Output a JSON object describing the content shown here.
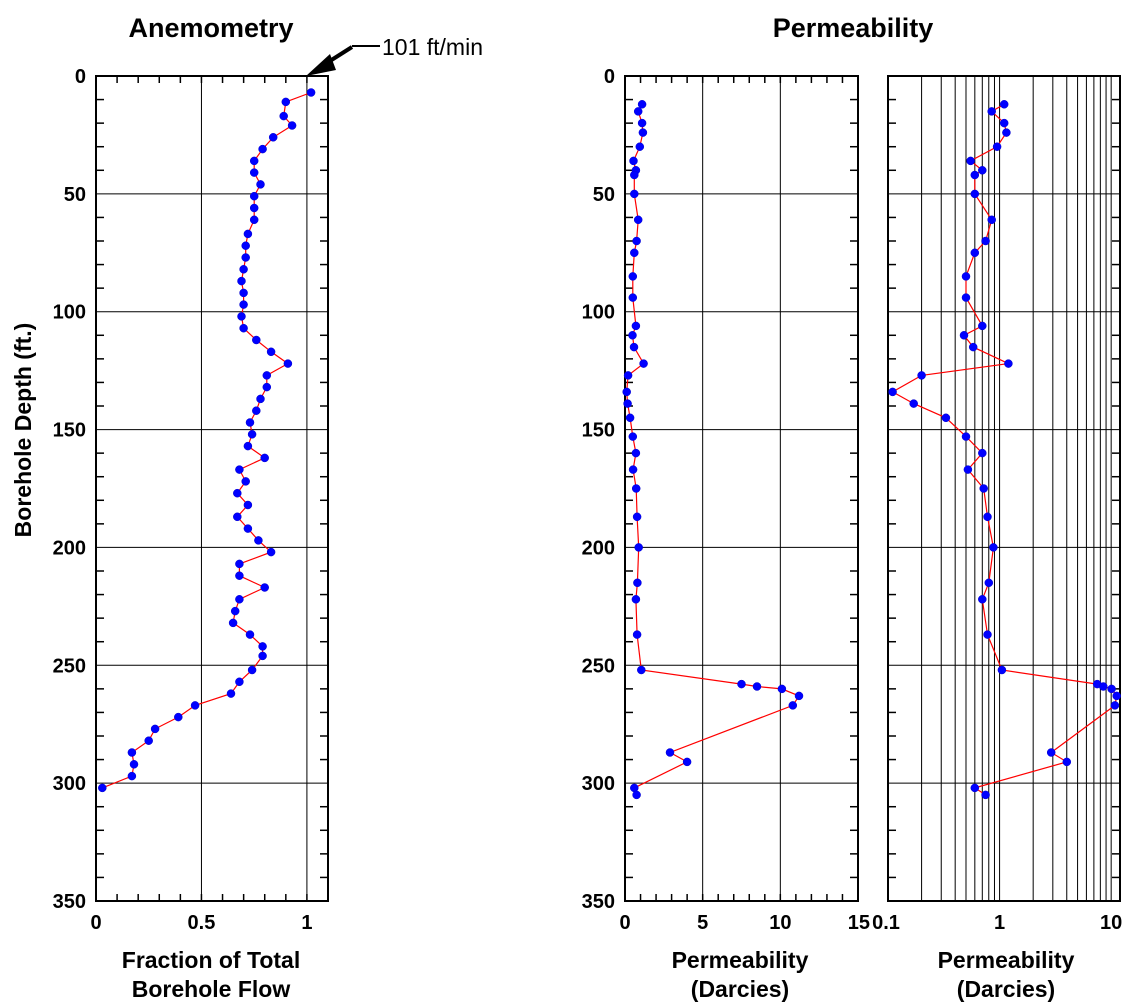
{
  "chart_data": [
    {
      "type": "line",
      "title": "Anemometry",
      "xlabel": [
        "Fraction of Total",
        "Borehole Flow"
      ],
      "ylabel": "Borehole Depth (ft.)",
      "xlim": [
        0,
        1.1
      ],
      "ylim": [
        350,
        0
      ],
      "x_scale": "linear",
      "x_ticks": [
        "0",
        "0.5",
        "1"
      ],
      "y_ticks": [
        "0",
        "50",
        "100",
        "150",
        "200",
        "250",
        "300",
        "350"
      ],
      "grid": true,
      "annotation": "101 ft/min",
      "line_color": "#ff0000",
      "marker_color": "#0000ff",
      "points": [
        {
          "x": 1.02,
          "y": 7
        },
        {
          "x": 0.9,
          "y": 11
        },
        {
          "x": 0.89,
          "y": 17
        },
        {
          "x": 0.93,
          "y": 21
        },
        {
          "x": 0.84,
          "y": 26
        },
        {
          "x": 0.79,
          "y": 31
        },
        {
          "x": 0.75,
          "y": 36
        },
        {
          "x": 0.75,
          "y": 41
        },
        {
          "x": 0.78,
          "y": 46
        },
        {
          "x": 0.75,
          "y": 51
        },
        {
          "x": 0.75,
          "y": 56
        },
        {
          "x": 0.75,
          "y": 61
        },
        {
          "x": 0.72,
          "y": 67
        },
        {
          "x": 0.71,
          "y": 72
        },
        {
          "x": 0.71,
          "y": 77
        },
        {
          "x": 0.7,
          "y": 82
        },
        {
          "x": 0.69,
          "y": 87
        },
        {
          "x": 0.7,
          "y": 92
        },
        {
          "x": 0.7,
          "y": 97
        },
        {
          "x": 0.69,
          "y": 102
        },
        {
          "x": 0.7,
          "y": 107
        },
        {
          "x": 0.76,
          "y": 112
        },
        {
          "x": 0.83,
          "y": 117
        },
        {
          "x": 0.91,
          "y": 122
        },
        {
          "x": 0.81,
          "y": 127
        },
        {
          "x": 0.81,
          "y": 132
        },
        {
          "x": 0.78,
          "y": 137
        },
        {
          "x": 0.76,
          "y": 142
        },
        {
          "x": 0.73,
          "y": 147
        },
        {
          "x": 0.74,
          "y": 152
        },
        {
          "x": 0.72,
          "y": 157
        },
        {
          "x": 0.8,
          "y": 162
        },
        {
          "x": 0.68,
          "y": 167
        },
        {
          "x": 0.71,
          "y": 172
        },
        {
          "x": 0.67,
          "y": 177
        },
        {
          "x": 0.72,
          "y": 182
        },
        {
          "x": 0.67,
          "y": 187
        },
        {
          "x": 0.72,
          "y": 192
        },
        {
          "x": 0.77,
          "y": 197
        },
        {
          "x": 0.83,
          "y": 202
        },
        {
          "x": 0.68,
          "y": 207
        },
        {
          "x": 0.68,
          "y": 212
        },
        {
          "x": 0.8,
          "y": 217
        },
        {
          "x": 0.68,
          "y": 222
        },
        {
          "x": 0.66,
          "y": 227
        },
        {
          "x": 0.65,
          "y": 232
        },
        {
          "x": 0.73,
          "y": 237
        },
        {
          "x": 0.79,
          "y": 242
        },
        {
          "x": 0.79,
          "y": 246
        },
        {
          "x": 0.74,
          "y": 252
        },
        {
          "x": 0.68,
          "y": 257
        },
        {
          "x": 0.64,
          "y": 262
        },
        {
          "x": 0.47,
          "y": 267
        },
        {
          "x": 0.39,
          "y": 272
        },
        {
          "x": 0.28,
          "y": 277
        },
        {
          "x": 0.25,
          "y": 282
        },
        {
          "x": 0.17,
          "y": 287
        },
        {
          "x": 0.18,
          "y": 292
        },
        {
          "x": 0.17,
          "y": 297
        },
        {
          "x": 0.03,
          "y": 302
        }
      ]
    },
    {
      "type": "line",
      "title": "Permeability",
      "xlabel": [
        "Permeability",
        "(Darcies)"
      ],
      "ylabel": "",
      "xlim": [
        0,
        15
      ],
      "ylim": [
        350,
        0
      ],
      "x_scale": "linear",
      "x_ticks": [
        "0",
        "5",
        "10",
        "15"
      ],
      "y_ticks": [
        "0",
        "50",
        "100",
        "150",
        "200",
        "250",
        "300",
        "350"
      ],
      "grid": true,
      "line_color": "#ff0000",
      "marker_color": "#0000ff",
      "points": [
        {
          "x": 1.1,
          "y": 12
        },
        {
          "x": 0.85,
          "y": 15
        },
        {
          "x": 1.1,
          "y": 20
        },
        {
          "x": 1.15,
          "y": 24
        },
        {
          "x": 0.95,
          "y": 30
        },
        {
          "x": 0.55,
          "y": 36
        },
        {
          "x": 0.7,
          "y": 40
        },
        {
          "x": 0.6,
          "y": 42
        },
        {
          "x": 0.6,
          "y": 50
        },
        {
          "x": 0.85,
          "y": 61
        },
        {
          "x": 0.75,
          "y": 70
        },
        {
          "x": 0.6,
          "y": 75
        },
        {
          "x": 0.5,
          "y": 85
        },
        {
          "x": 0.5,
          "y": 94
        },
        {
          "x": 0.7,
          "y": 106
        },
        {
          "x": 0.48,
          "y": 110
        },
        {
          "x": 0.58,
          "y": 115
        },
        {
          "x": 1.2,
          "y": 122
        },
        {
          "x": 0.2,
          "y": 127
        },
        {
          "x": 0.11,
          "y": 134
        },
        {
          "x": 0.17,
          "y": 139
        },
        {
          "x": 0.33,
          "y": 145
        },
        {
          "x": 0.5,
          "y": 153
        },
        {
          "x": 0.7,
          "y": 160
        },
        {
          "x": 0.52,
          "y": 167
        },
        {
          "x": 0.72,
          "y": 175
        },
        {
          "x": 0.78,
          "y": 187
        },
        {
          "x": 0.88,
          "y": 200
        },
        {
          "x": 0.8,
          "y": 215
        },
        {
          "x": 0.7,
          "y": 222
        },
        {
          "x": 0.78,
          "y": 237
        },
        {
          "x": 1.05,
          "y": 252
        },
        {
          "x": 7.5,
          "y": 258
        },
        {
          "x": 8.5,
          "y": 259
        },
        {
          "x": 10.1,
          "y": 260
        },
        {
          "x": 11.2,
          "y": 263
        },
        {
          "x": 10.8,
          "y": 267
        },
        {
          "x": 2.9,
          "y": 287
        },
        {
          "x": 4,
          "y": 291
        },
        {
          "x": 0.6,
          "y": 302
        },
        {
          "x": 0.75,
          "y": 305
        }
      ]
    },
    {
      "type": "line",
      "title": "",
      "xlabel": [
        "Permeability",
        "(Darcies)"
      ],
      "ylabel": "",
      "xlim": [
        0.1,
        12
      ],
      "ylim": [
        350,
        0
      ],
      "x_scale": "log",
      "x_ticks": [
        "0.1",
        "1",
        "10"
      ],
      "y_ticks": [],
      "grid": true,
      "line_color": "#ff0000",
      "marker_color": "#0000ff",
      "points_ref": 1
    }
  ]
}
